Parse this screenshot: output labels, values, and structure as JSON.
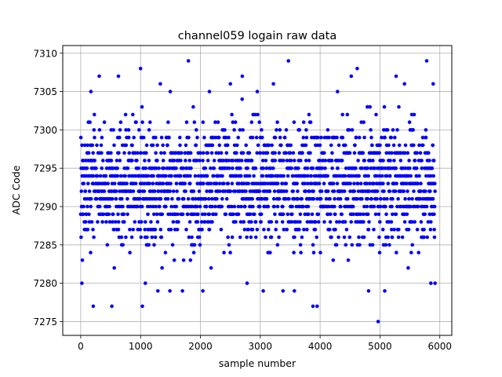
{
  "chart_data": {
    "type": "scatter",
    "title": "channel059 logain raw data",
    "xlabel": "sample number",
    "ylabel": "ADC Code",
    "xlim": [
      -300,
      6200
    ],
    "ylim": [
      7273.2,
      7311
    ],
    "xticks": [
      0,
      1000,
      2000,
      3000,
      4000,
      5000,
      6000
    ],
    "yticks": [
      7275,
      7280,
      7285,
      7290,
      7295,
      7300,
      7305,
      7310
    ],
    "grid": true,
    "marker_color": "#0000ff",
    "sample_range": [
      0,
      5920
    ],
    "adc_range_dense": [
      7284,
      7302
    ],
    "outliers": [
      {
        "x": 210,
        "y": 7277
      },
      {
        "x": 520,
        "y": 7277
      },
      {
        "x": 1030,
        "y": 7277
      },
      {
        "x": 3880,
        "y": 7277
      },
      {
        "x": 3950,
        "y": 7277
      },
      {
        "x": 4970,
        "y": 7275
      },
      {
        "x": 1000,
        "y": 7308
      },
      {
        "x": 1800,
        "y": 7309
      },
      {
        "x": 3470,
        "y": 7309
      },
      {
        "x": 5780,
        "y": 7309
      },
      {
        "x": 4620,
        "y": 7308
      },
      {
        "x": 310,
        "y": 7307
      },
      {
        "x": 630,
        "y": 7307
      },
      {
        "x": 2700,
        "y": 7307
      },
      {
        "x": 4520,
        "y": 7307
      },
      {
        "x": 5270,
        "y": 7307
      },
      {
        "x": 5890,
        "y": 7306
      },
      {
        "x": 1330,
        "y": 7306
      },
      {
        "x": 2500,
        "y": 7306
      },
      {
        "x": 3220,
        "y": 7306
      },
      {
        "x": 5410,
        "y": 7306
      },
      {
        "x": 2950,
        "y": 7305
      },
      {
        "x": 170,
        "y": 7305
      },
      {
        "x": 4290,
        "y": 7305
      },
      {
        "x": 2150,
        "y": 7305
      },
      {
        "x": 1290,
        "y": 7279
      },
      {
        "x": 1490,
        "y": 7279
      },
      {
        "x": 1700,
        "y": 7279
      },
      {
        "x": 2040,
        "y": 7279
      },
      {
        "x": 3050,
        "y": 7279
      },
      {
        "x": 3570,
        "y": 7279
      },
      {
        "x": 3380,
        "y": 7279
      },
      {
        "x": 4810,
        "y": 7279
      },
      {
        "x": 5080,
        "y": 7279
      },
      {
        "x": 2780,
        "y": 7280
      },
      {
        "x": 5850,
        "y": 7280
      },
      {
        "x": 5920,
        "y": 7280
      },
      {
        "x": 20,
        "y": 7280
      },
      {
        "x": 1080,
        "y": 7280
      }
    ]
  }
}
